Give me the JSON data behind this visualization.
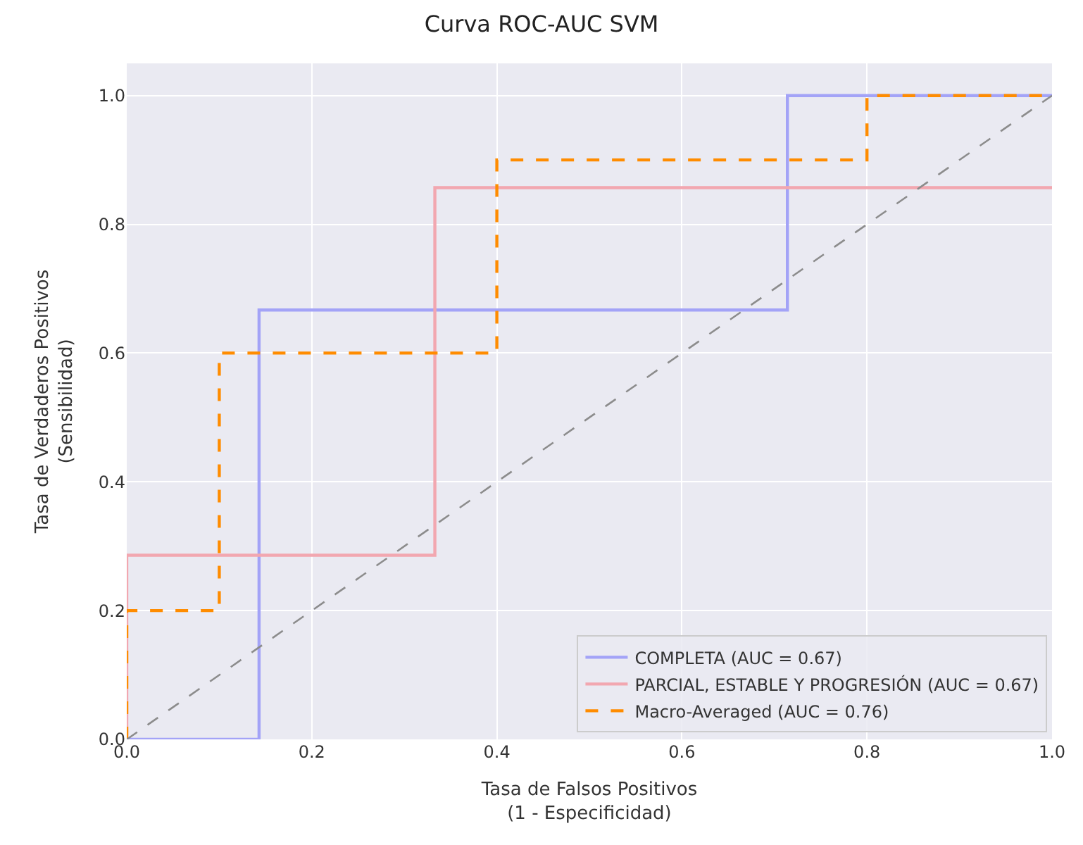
{
  "chart_data": {
    "type": "step",
    "title": "Curva ROC-AUC SVM",
    "xlabel": "Tasa de Falsos Positivos\n(1 - Especificidad)",
    "ylabel": "Tasa de Verdaderos Positivos\n(Sensibilidad)",
    "series": [
      {
        "name": "COMPLETA (AUC = 0.67)",
        "color": "#a3a3f7",
        "x": [
          0,
          0.143,
          0.714,
          1
        ],
        "values": [
          0,
          0.667,
          1.0,
          1.0
        ]
      },
      {
        "name": "PARCIAL, ESTABLE Y PROGRESIÓN (AUC = 0.67)",
        "color": "#f2a7b0",
        "x": [
          0,
          0,
          0.333,
          1
        ],
        "values": [
          0,
          0.286,
          0.857,
          0.857
        ]
      },
      {
        "name": "Macro-Averaged (AUC = 0.76)",
        "color": "#ff8c00",
        "line_style": "dashed",
        "x": [
          0,
          0,
          0.1,
          0.4,
          0.8,
          1
        ],
        "values": [
          0,
          0.2,
          0.6,
          0.9,
          1.0,
          1.0
        ]
      },
      {
        "type": "line",
        "color": "#8c8c8c",
        "line_style": "dashed",
        "x": [
          0,
          1
        ],
        "values": [
          0,
          1
        ]
      }
    ],
    "xlim": [
      0,
      1
    ],
    "ylim": [
      0,
      1.05
    ],
    "xticks": [
      {
        "value": 0,
        "label": "0.0"
      },
      {
        "value": 0.2,
        "label": "0.2"
      },
      {
        "value": 0.4,
        "label": "0.4"
      },
      {
        "value": 0.6,
        "label": "0.6"
      },
      {
        "value": 0.8,
        "label": "0.8"
      },
      {
        "value": 1,
        "label": "1.0"
      }
    ],
    "yticks": [
      {
        "value": 0,
        "label": "0.0"
      },
      {
        "value": 0.2,
        "label": "0.2"
      },
      {
        "value": 0.4,
        "label": "0.4"
      },
      {
        "value": 0.6,
        "label": "0.6"
      },
      {
        "value": 0.8,
        "label": "0.8"
      },
      {
        "value": 1,
        "label": "1.0"
      }
    ],
    "grid": true,
    "legend": "bottom right"
  }
}
